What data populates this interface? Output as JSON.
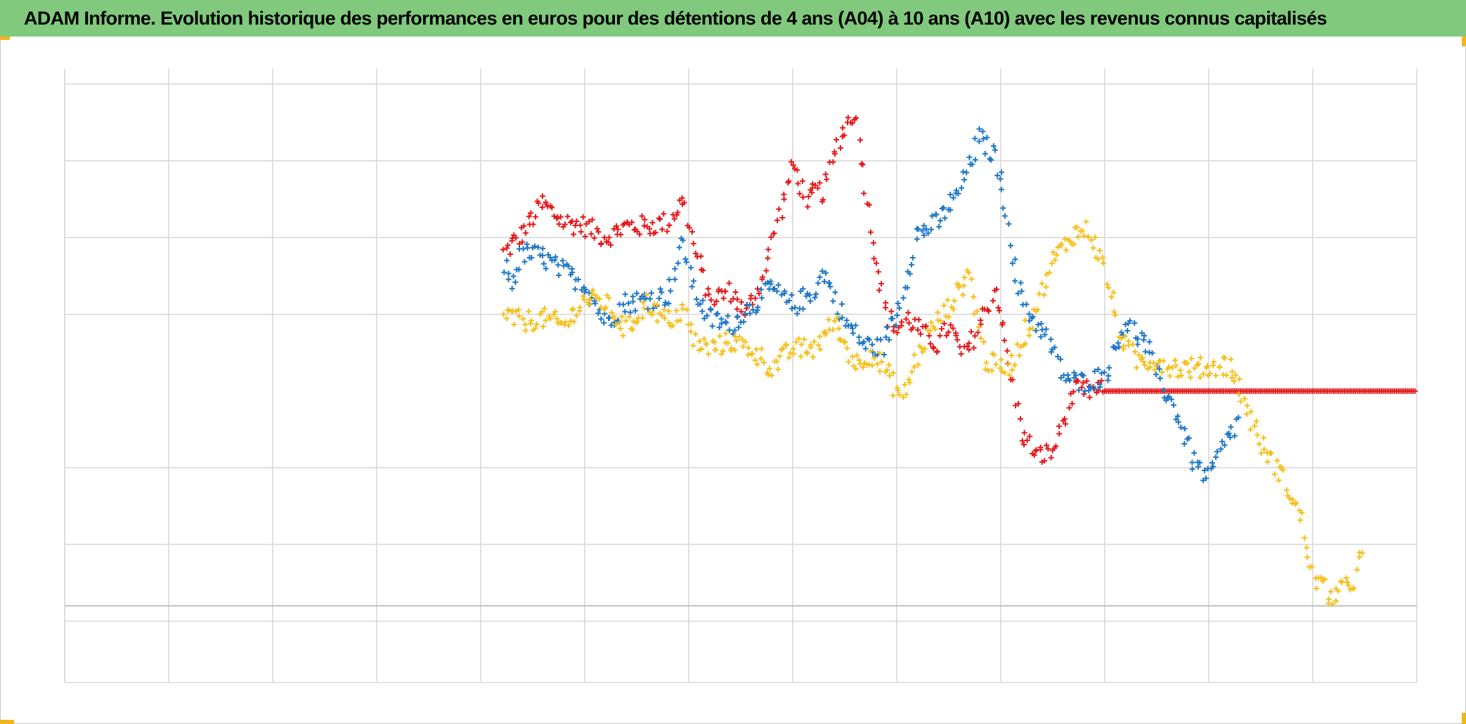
{
  "title": "ADAM Informe. Evolution historique des performances en euros pour des détentions de 4 ans (A04) à 10 ans (A10) avec les revenus connus capitalisés",
  "colors": {
    "background": "#ffffff",
    "title_bar": "#80c97d",
    "grid": "#d9d9d9",
    "axis_line": "#bfbfbf",
    "corner_marks": "#f2b51c"
  },
  "chart_data": {
    "type": "scatter",
    "marker": "plus",
    "title": "ADAM Informe. Evolution historique des performances en euros pour des détentions de 4 ans (A04) à 10 ans (A10) avec les revenus connus capitalisés",
    "xlabel": "",
    "ylabel": "",
    "tick_labels_visible": false,
    "legend": "none",
    "grid": true,
    "xlim": [
      0,
      13
    ],
    "ylim": [
      -0.8,
      7.2
    ],
    "x_gridlines": [
      0,
      1,
      2,
      3,
      4,
      5,
      6,
      7,
      8,
      9,
      10,
      11,
      12,
      13
    ],
    "y_gridlines": [
      0,
      1,
      2,
      4,
      5,
      6,
      7
    ],
    "zero_line": 0.2,
    "series": [
      {
        "color": "#e31a1c",
        "x": [
          4.22,
          4.4,
          4.6,
          4.8,
          5.0,
          5.2,
          5.4,
          5.6,
          5.8,
          5.95,
          6.05,
          6.2,
          6.4,
          6.55,
          6.7,
          6.85,
          7.0,
          7.15,
          7.2,
          7.3,
          7.45,
          7.6,
          7.75,
          7.9,
          8.0,
          8.1,
          8.25,
          8.4,
          8.5,
          8.65,
          8.8,
          8.95,
          9.1,
          9.2,
          9.35,
          9.5,
          9.7,
          10.0,
          10.5,
          11.0,
          11.5,
          12.0,
          12.5,
          13.0
        ],
        "y": [
          4.8,
          5.05,
          5.45,
          5.2,
          5.15,
          5.0,
          5.15,
          5.15,
          5.2,
          5.5,
          4.9,
          4.2,
          4.3,
          4.0,
          4.45,
          5.2,
          5.95,
          5.45,
          5.6,
          5.6,
          6.3,
          6.65,
          5.15,
          4.0,
          3.8,
          3.95,
          3.75,
          3.6,
          3.85,
          3.45,
          3.85,
          4.35,
          3.2,
          2.45,
          2.15,
          2.2,
          3.0,
          3.0,
          3.0,
          3.0,
          3.0,
          3.0,
          3.0,
          3.0
        ]
      },
      {
        "color": "#1f77c4",
        "x": [
          4.22,
          4.3,
          4.4,
          4.6,
          4.8,
          5.0,
          5.2,
          5.4,
          5.6,
          5.8,
          5.95,
          6.05,
          6.2,
          6.4,
          6.6,
          6.8,
          7.0,
          7.2,
          7.3,
          7.5,
          7.7,
          7.85,
          8.0,
          8.2,
          8.4,
          8.6,
          8.8,
          8.95,
          9.05,
          9.15,
          9.3,
          9.45,
          9.6,
          9.75,
          10.0,
          10.2,
          10.4,
          10.5,
          10.7,
          10.85,
          11.0,
          11.15,
          11.3
        ],
        "y": [
          4.65,
          4.4,
          4.8,
          4.75,
          4.55,
          4.4,
          3.9,
          4.15,
          4.2,
          4.25,
          4.95,
          4.3,
          3.95,
          3.85,
          4.1,
          4.35,
          4.1,
          4.3,
          4.55,
          3.9,
          3.6,
          3.55,
          4.0,
          5.05,
          5.2,
          5.6,
          6.3,
          6.05,
          5.4,
          4.4,
          3.95,
          3.7,
          3.2,
          3.1,
          3.2,
          3.9,
          3.6,
          3.2,
          2.7,
          2.1,
          1.85,
          2.3,
          2.65
        ]
      },
      {
        "color": "#f5c01a",
        "x": [
          4.22,
          4.4,
          4.6,
          4.8,
          5.0,
          5.2,
          5.4,
          5.6,
          5.8,
          5.95,
          6.05,
          6.2,
          6.4,
          6.6,
          6.8,
          7.0,
          7.2,
          7.4,
          7.6,
          7.75,
          7.9,
          8.05,
          8.2,
          8.35,
          8.5,
          8.7,
          8.85,
          9.0,
          9.1,
          9.3,
          9.5,
          9.7,
          9.85,
          10.0,
          10.15,
          10.3,
          10.5,
          10.7,
          11.0,
          11.2,
          11.3,
          11.5,
          11.7,
          11.9,
          12.0,
          12.2,
          12.4,
          12.5
        ],
        "y": [
          4.0,
          3.9,
          3.95,
          3.85,
          4.2,
          4.15,
          3.8,
          4.15,
          3.9,
          4.05,
          3.65,
          3.55,
          3.65,
          3.55,
          3.3,
          3.55,
          3.55,
          3.9,
          3.35,
          3.5,
          3.25,
          2.9,
          3.45,
          3.85,
          4.1,
          4.55,
          3.4,
          3.3,
          3.35,
          3.95,
          4.7,
          5.05,
          5.1,
          4.6,
          3.7,
          3.4,
          3.4,
          3.3,
          3.3,
          3.35,
          3.0,
          2.3,
          1.9,
          1.3,
          0.6,
          0.3,
          0.55,
          1.0
        ]
      }
    ]
  }
}
